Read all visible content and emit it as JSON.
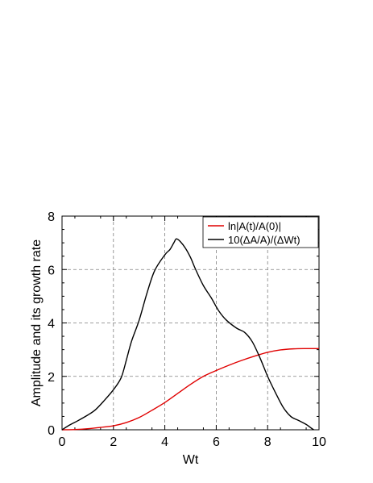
{
  "chart_data": {
    "type": "line",
    "xlabel": "Wt",
    "ylabel": "Amplitude and its growth rate",
    "xlim": [
      0,
      10
    ],
    "ylim": [
      0,
      8
    ],
    "xticks": [
      "0",
      "2",
      "4",
      "6",
      "8",
      "10"
    ],
    "yticks": [
      "0",
      "2",
      "4",
      "6",
      "8"
    ],
    "grid": true,
    "legend_position": "top-right",
    "series": [
      {
        "name": "ln|A(t)/A(0)|",
        "color": "#e00000",
        "x": [
          0,
          0.5,
          1.0,
          1.5,
          2.0,
          2.5,
          3.0,
          3.5,
          4.0,
          4.5,
          5.0,
          5.5,
          6.0,
          6.5,
          7.0,
          7.5,
          8.0,
          8.5,
          9.0,
          9.5,
          10.0
        ],
        "y": [
          0,
          0.01,
          0.04,
          0.09,
          0.15,
          0.27,
          0.46,
          0.73,
          1.02,
          1.36,
          1.7,
          2.0,
          2.22,
          2.42,
          2.6,
          2.76,
          2.9,
          2.99,
          3.03,
          3.04,
          3.04
        ]
      },
      {
        "name": "10(ΔA/A)/(ΔWt)",
        "color": "#000000",
        "x": [
          0,
          0.3,
          0.6,
          1.0,
          1.3,
          1.6,
          2.0,
          2.3,
          2.5,
          2.7,
          3.0,
          3.3,
          3.6,
          4.0,
          4.2,
          4.35,
          4.45,
          4.6,
          4.8,
          5.0,
          5.2,
          5.5,
          5.8,
          6.1,
          6.4,
          6.8,
          7.1,
          7.4,
          7.7,
          8.0,
          8.3,
          8.6,
          8.9,
          9.2,
          9.5,
          9.7,
          9.8
        ],
        "y": [
          0,
          0.18,
          0.33,
          0.55,
          0.75,
          1.05,
          1.5,
          1.95,
          2.6,
          3.3,
          4.1,
          5.1,
          5.95,
          6.55,
          6.75,
          7.0,
          7.15,
          7.05,
          6.8,
          6.45,
          6.0,
          5.4,
          4.95,
          4.45,
          4.1,
          3.8,
          3.65,
          3.3,
          2.7,
          2.0,
          1.4,
          0.85,
          0.5,
          0.35,
          0.2,
          0.06,
          0.0
        ]
      }
    ]
  }
}
